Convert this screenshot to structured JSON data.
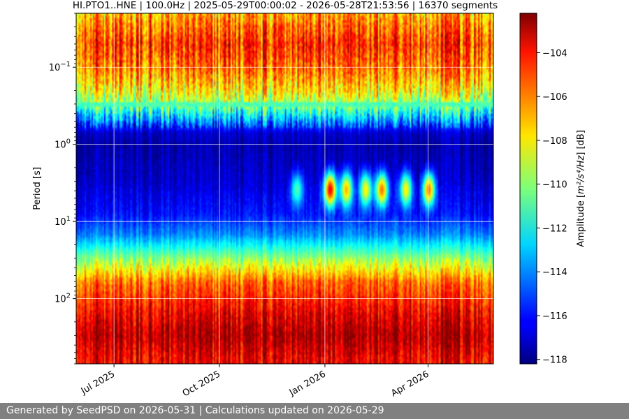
{
  "chart_data": {
    "type": "heatmap",
    "title": "HI.PTO1..HNE | 100.0Hz | 2025-05-29T00:00:02 - 2026-05-28T21:53:56 | 16370 segments",
    "xlabel": "",
    "ylabel": "Period [s]",
    "y_scale": "log",
    "y_inverted": true,
    "ylim": [
      0.02,
      700
    ],
    "y_ticks": [
      {
        "value": 0.1,
        "base": "10",
        "exp": "−1"
      },
      {
        "value": 1,
        "base": "10",
        "exp": "0"
      },
      {
        "value": 10,
        "base": "10",
        "exp": "1"
      },
      {
        "value": 100,
        "base": "10",
        "exp": "2"
      }
    ],
    "xlim": [
      "2025-05-29",
      "2026-05-28"
    ],
    "x_ticks": [
      {
        "date": "2025-07-01",
        "label": "Jul 2025"
      },
      {
        "date": "2025-10-01",
        "label": "Oct 2025"
      },
      {
        "date": "2026-01-01",
        "label": "Jan 2026"
      },
      {
        "date": "2026-04-01",
        "label": "Apr 2026"
      }
    ],
    "grid": true,
    "colormap": "jet",
    "colorbar": {
      "label_prefix": "Amplitude [",
      "label_math": "m²/s⁴/Hz",
      "label_suffix": "] [dB]",
      "range": [
        -118.2,
        -102.2
      ],
      "ticks": [
        -104,
        -106,
        -108,
        -110,
        -112,
        -114,
        -116,
        -118
      ]
    },
    "profile": [
      {
        "period": 0.02,
        "db": -107
      },
      {
        "period": 0.03,
        "db": -106
      },
      {
        "period": 0.05,
        "db": -105
      },
      {
        "period": 0.1,
        "db": -106
      },
      {
        "period": 0.2,
        "db": -108
      },
      {
        "period": 0.3,
        "db": -110
      },
      {
        "period": 0.5,
        "db": -114
      },
      {
        "period": 0.7,
        "db": -117
      },
      {
        "period": 1,
        "db": -117.5
      },
      {
        "period": 3,
        "db": -117
      },
      {
        "period": 8,
        "db": -116
      },
      {
        "period": 15,
        "db": -114
      },
      {
        "period": 30,
        "db": -110
      },
      {
        "period": 60,
        "db": -106
      },
      {
        "period": 150,
        "db": -104
      },
      {
        "period": 300,
        "db": -103
      },
      {
        "period": 600,
        "db": -104
      }
    ],
    "microseism_events": [
      {
        "date": "2025-12-07",
        "db": -111
      },
      {
        "date": "2026-01-05",
        "db": -104
      },
      {
        "date": "2026-01-19",
        "db": -107
      },
      {
        "date": "2026-02-05",
        "db": -108
      },
      {
        "date": "2026-02-19",
        "db": -106
      },
      {
        "date": "2026-03-12",
        "db": -108
      },
      {
        "date": "2026-04-01",
        "db": -106
      }
    ]
  },
  "footer": {
    "text": "Generated by SeedPSD on 2026-05-31 | Calculations updated on 2026-05-29"
  }
}
